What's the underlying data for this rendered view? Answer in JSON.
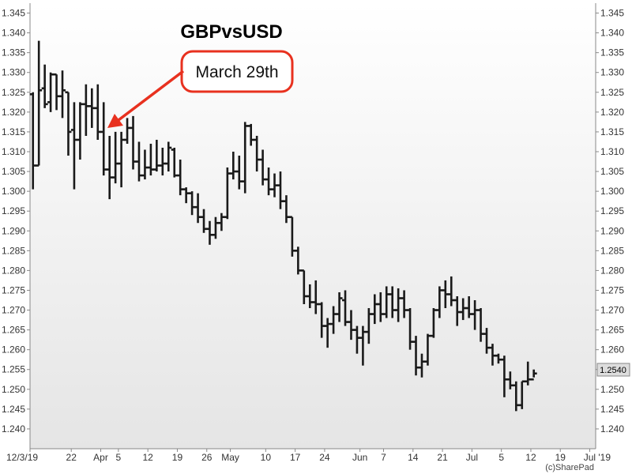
{
  "chart_data": {
    "type": "bar",
    "style": "ohlc",
    "title": "GBPvsUSD",
    "annotation": "March 29th",
    "last_price_label": "1.2540",
    "credit": "(c)SharePad",
    "ylim": [
      1.235,
      1.3475
    ],
    "y_ticks": [
      "1.240",
      "1.245",
      "1.250",
      "1.255",
      "1.260",
      "1.265",
      "1.270",
      "1.275",
      "1.280",
      "1.285",
      "1.290",
      "1.295",
      "1.300",
      "1.305",
      "1.310",
      "1.315",
      "1.320",
      "1.325",
      "1.330",
      "1.335",
      "1.340",
      "1.345"
    ],
    "x_tick_labels": [
      "12/3/19",
      "22",
      "Apr",
      "5",
      "12",
      "19",
      "26",
      "May",
      "10",
      "17",
      "24",
      "Jun",
      "7",
      "14",
      "21",
      "Jul",
      "5",
      "12",
      "19",
      "Jul '19"
    ],
    "x_tick_positions": [
      0,
      7,
      12,
      15,
      20,
      25,
      30,
      34,
      40,
      45,
      50,
      56,
      60,
      65,
      70,
      75,
      80,
      85,
      90,
      95
    ],
    "x_range": [
      0,
      96
    ],
    "annotation_bar_index": 13,
    "bars": [
      {
        "o": 1.3245,
        "h": 1.325,
        "l": 1.3005,
        "c": 1.3065
      },
      {
        "o": 1.3065,
        "h": 1.338,
        "l": 1.3065,
        "c": 1.3255
      },
      {
        "o": 1.326,
        "h": 1.332,
        "l": 1.321,
        "c": 1.322
      },
      {
        "o": 1.3225,
        "h": 1.33,
        "l": 1.32,
        "c": 1.3295
      },
      {
        "o": 1.3295,
        "h": 1.3295,
        "l": 1.3205,
        "c": 1.324
      },
      {
        "o": 1.324,
        "h": 1.3305,
        "l": 1.3185,
        "c": 1.3255
      },
      {
        "o": 1.325,
        "h": 1.325,
        "l": 1.309,
        "c": 1.315
      },
      {
        "o": 1.3155,
        "h": 1.3225,
        "l": 1.3005,
        "c": 1.313
      },
      {
        "o": 1.313,
        "h": 1.3225,
        "l": 1.308,
        "c": 1.322
      },
      {
        "o": 1.322,
        "h": 1.327,
        "l": 1.314,
        "c": 1.3215
      },
      {
        "o": 1.3215,
        "h": 1.326,
        "l": 1.316,
        "c": 1.321
      },
      {
        "o": 1.321,
        "h": 1.327,
        "l": 1.313,
        "c": 1.315
      },
      {
        "o": 1.315,
        "h": 1.3225,
        "l": 1.304,
        "c": 1.3055
      },
      {
        "o": 1.3055,
        "h": 1.314,
        "l": 1.298,
        "c": 1.3035
      },
      {
        "o": 1.3035,
        "h": 1.315,
        "l": 1.302,
        "c": 1.307
      },
      {
        "o": 1.307,
        "h": 1.315,
        "l": 1.301,
        "c": 1.313
      },
      {
        "o": 1.313,
        "h": 1.3185,
        "l": 1.312,
        "c": 1.316
      },
      {
        "o": 1.316,
        "h": 1.319,
        "l": 1.3055,
        "c": 1.3075
      },
      {
        "o": 1.3075,
        "h": 1.3125,
        "l": 1.3025,
        "c": 1.304
      },
      {
        "o": 1.304,
        "h": 1.3105,
        "l": 1.303,
        "c": 1.306
      },
      {
        "o": 1.306,
        "h": 1.312,
        "l": 1.304,
        "c": 1.3055
      },
      {
        "o": 1.3055,
        "h": 1.313,
        "l": 1.305,
        "c": 1.3065
      },
      {
        "o": 1.3065,
        "h": 1.311,
        "l": 1.304,
        "c": 1.307
      },
      {
        "o": 1.307,
        "h": 1.3125,
        "l": 1.305,
        "c": 1.311
      },
      {
        "o": 1.3105,
        "h": 1.311,
        "l": 1.3035,
        "c": 1.304
      },
      {
        "o": 1.304,
        "h": 1.308,
        "l": 1.299,
        "c": 1.3005
      },
      {
        "o": 1.3005,
        "h": 1.301,
        "l": 1.297,
        "c": 1.2995
      },
      {
        "o": 1.2995,
        "h": 1.3,
        "l": 1.294,
        "c": 1.296
      },
      {
        "o": 1.296,
        "h": 1.2995,
        "l": 1.292,
        "c": 1.2935
      },
      {
        "o": 1.2935,
        "h": 1.2955,
        "l": 1.2895,
        "c": 1.2905
      },
      {
        "o": 1.2905,
        "h": 1.2925,
        "l": 1.2865,
        "c": 1.289
      },
      {
        "o": 1.289,
        "h": 1.2935,
        "l": 1.288,
        "c": 1.292
      },
      {
        "o": 1.292,
        "h": 1.2945,
        "l": 1.29,
        "c": 1.2935
      },
      {
        "o": 1.2935,
        "h": 1.306,
        "l": 1.293,
        "c": 1.3045
      },
      {
        "o": 1.3045,
        "h": 1.31,
        "l": 1.303,
        "c": 1.305
      },
      {
        "o": 1.305,
        "h": 1.309,
        "l": 1.3005,
        "c": 1.3025
      },
      {
        "o": 1.3025,
        "h": 1.3175,
        "l": 1.2995,
        "c": 1.3165
      },
      {
        "o": 1.3165,
        "h": 1.317,
        "l": 1.3115,
        "c": 1.313
      },
      {
        "o": 1.313,
        "h": 1.314,
        "l": 1.305,
        "c": 1.308
      },
      {
        "o": 1.308,
        "h": 1.3105,
        "l": 1.3015,
        "c": 1.303
      },
      {
        "o": 1.303,
        "h": 1.306,
        "l": 1.299,
        "c": 1.3005
      },
      {
        "o": 1.3005,
        "h": 1.3045,
        "l": 1.2985,
        "c": 1.3015
      },
      {
        "o": 1.3015,
        "h": 1.305,
        "l": 1.2955,
        "c": 1.2975
      },
      {
        "o": 1.2975,
        "h": 1.299,
        "l": 1.292,
        "c": 1.2935
      },
      {
        "o": 1.2935,
        "h": 1.2935,
        "l": 1.2835,
        "c": 1.285
      },
      {
        "o": 1.285,
        "h": 1.286,
        "l": 1.279,
        "c": 1.28
      },
      {
        "o": 1.28,
        "h": 1.28,
        "l": 1.2715,
        "c": 1.2735
      },
      {
        "o": 1.2735,
        "h": 1.2765,
        "l": 1.2705,
        "c": 1.272
      },
      {
        "o": 1.272,
        "h": 1.2775,
        "l": 1.269,
        "c": 1.2715
      },
      {
        "o": 1.2715,
        "h": 1.272,
        "l": 1.263,
        "c": 1.266
      },
      {
        "o": 1.266,
        "h": 1.268,
        "l": 1.2605,
        "c": 1.2665
      },
      {
        "o": 1.2665,
        "h": 1.271,
        "l": 1.264,
        "c": 1.269
      },
      {
        "o": 1.269,
        "h": 1.2745,
        "l": 1.267,
        "c": 1.273
      },
      {
        "o": 1.2725,
        "h": 1.275,
        "l": 1.266,
        "c": 1.267
      },
      {
        "o": 1.267,
        "h": 1.27,
        "l": 1.2625,
        "c": 1.265
      },
      {
        "o": 1.265,
        "h": 1.266,
        "l": 1.259,
        "c": 1.263
      },
      {
        "o": 1.263,
        "h": 1.266,
        "l": 1.256,
        "c": 1.2645
      },
      {
        "o": 1.2645,
        "h": 1.2705,
        "l": 1.2615,
        "c": 1.269
      },
      {
        "o": 1.269,
        "h": 1.274,
        "l": 1.2665,
        "c": 1.2715
      },
      {
        "o": 1.2715,
        "h": 1.2745,
        "l": 1.267,
        "c": 1.269
      },
      {
        "o": 1.269,
        "h": 1.276,
        "l": 1.268,
        "c": 1.274
      },
      {
        "o": 1.274,
        "h": 1.276,
        "l": 1.268,
        "c": 1.27
      },
      {
        "o": 1.27,
        "h": 1.2755,
        "l": 1.267,
        "c": 1.273
      },
      {
        "o": 1.273,
        "h": 1.275,
        "l": 1.268,
        "c": 1.27
      },
      {
        "o": 1.27,
        "h": 1.2705,
        "l": 1.26,
        "c": 1.262
      },
      {
        "o": 1.262,
        "h": 1.2635,
        "l": 1.2535,
        "c": 1.2555
      },
      {
        "o": 1.2555,
        "h": 1.259,
        "l": 1.253,
        "c": 1.257
      },
      {
        "o": 1.257,
        "h": 1.264,
        "l": 1.256,
        "c": 1.2635
      },
      {
        "o": 1.2635,
        "h": 1.2705,
        "l": 1.263,
        "c": 1.27
      },
      {
        "o": 1.27,
        "h": 1.276,
        "l": 1.268,
        "c": 1.275
      },
      {
        "o": 1.275,
        "h": 1.2775,
        "l": 1.2705,
        "c": 1.274
      },
      {
        "o": 1.274,
        "h": 1.2785,
        "l": 1.271,
        "c": 1.2725
      },
      {
        "o": 1.2725,
        "h": 1.2735,
        "l": 1.266,
        "c": 1.2695
      },
      {
        "o": 1.2695,
        "h": 1.273,
        "l": 1.2675,
        "c": 1.2705
      },
      {
        "o": 1.2705,
        "h": 1.2735,
        "l": 1.268,
        "c": 1.269
      },
      {
        "o": 1.269,
        "h": 1.2725,
        "l": 1.265,
        "c": 1.27
      },
      {
        "o": 1.27,
        "h": 1.2705,
        "l": 1.262,
        "c": 1.264
      },
      {
        "o": 1.264,
        "h": 1.2655,
        "l": 1.259,
        "c": 1.2605
      },
      {
        "o": 1.2605,
        "h": 1.2615,
        "l": 1.256,
        "c": 1.2585
      },
      {
        "o": 1.2585,
        "h": 1.259,
        "l": 1.2565,
        "c": 1.2575
      },
      {
        "o": 1.2575,
        "h": 1.2585,
        "l": 1.248,
        "c": 1.2525
      },
      {
        "o": 1.2525,
        "h": 1.2545,
        "l": 1.25,
        "c": 1.251
      },
      {
        "o": 1.251,
        "h": 1.252,
        "l": 1.2445,
        "c": 1.246
      },
      {
        "o": 1.246,
        "h": 1.252,
        "l": 1.245,
        "c": 1.252
      },
      {
        "o": 1.252,
        "h": 1.257,
        "l": 1.251,
        "c": 1.2525
      },
      {
        "o": 1.2525,
        "h": 1.255,
        "l": 1.253,
        "c": 1.254
      }
    ]
  },
  "colors": {
    "bar": "#1a1a1a",
    "axis": "#888888",
    "arrow": "#e8311f",
    "callout_border": "#e8311f",
    "callout_fill": "#ffffff",
    "price_box": "#dddddd"
  }
}
